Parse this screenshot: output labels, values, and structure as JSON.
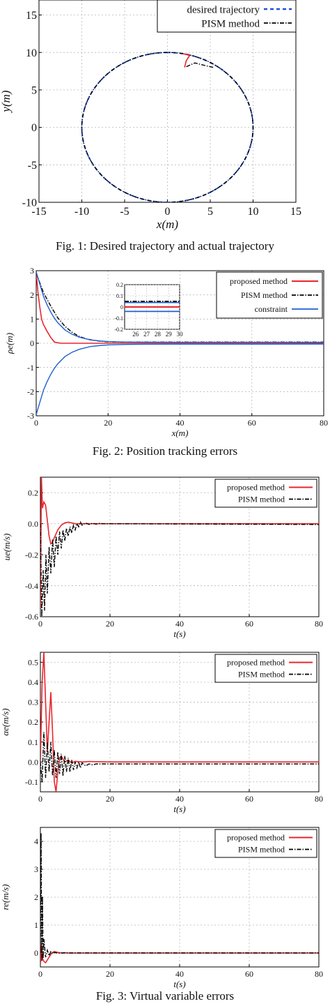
{
  "captions": {
    "fig1": "Fig. 1: Desired trajectory and actual trajectory",
    "fig2": "Fig. 2: Position tracking errors",
    "fig3": "Fig. 3: Virtual variable errors"
  },
  "colors": {
    "proposed": "#e8262c",
    "pism": "#000000",
    "desired": "#1f4fe0",
    "constraint": "#1f5fd0",
    "grid": "#b8b8b8"
  },
  "chart_data": [
    {
      "id": "fig1",
      "type": "line",
      "xlabel": "x(m)",
      "ylabel": "y(m)",
      "xlim": [
        -15,
        15
      ],
      "ylim": [
        -10,
        17
      ],
      "xticks": [
        -15,
        -10,
        -5,
        0,
        5,
        10,
        15
      ],
      "yticks": [
        -10,
        -5,
        0,
        5,
        10,
        15
      ],
      "grid": true,
      "legend_position": "top-right",
      "series": [
        {
          "name": "desired trajectory",
          "style": "dashed-blue",
          "kind": "circle",
          "radius": 10
        },
        {
          "name": "PISM method",
          "style": "dashdot-black",
          "kind": "circle-with-start",
          "radius": 10,
          "start_points": [
            [
              2.2,
              8.1
            ],
            [
              3.2,
              8.6
            ],
            [
              4.6,
              8.2
            ],
            [
              5.4,
              8.0
            ]
          ]
        },
        {
          "name": "",
          "style": "solid-red",
          "kind": "start-segment",
          "points": [
            [
              2.0,
              8.0
            ],
            [
              2.2,
              8.9
            ],
            [
              2.6,
              9.6
            ],
            [
              1.8,
              9.85
            ]
          ]
        }
      ]
    },
    {
      "id": "fig2",
      "type": "line",
      "xlabel": "x(m)",
      "ylabel": "ρe(m)",
      "xlim": [
        0,
        80
      ],
      "ylim": [
        -3,
        3
      ],
      "xticks": [
        0,
        20,
        40,
        60,
        80
      ],
      "yticks": [
        -3,
        -2,
        -1,
        0,
        1,
        2,
        3
      ],
      "grid": true,
      "legend_position": "top-right",
      "series": [
        {
          "name": "proposed method",
          "style": "solid-red",
          "x": [
            0,
            0.5,
            1,
            1.5,
            2,
            3,
            4,
            5,
            5.5,
            6,
            7,
            8,
            80
          ],
          "y": [
            2.9,
            2.1,
            1.5,
            1.0,
            0.78,
            0.5,
            0.25,
            0.06,
            0.03,
            0.02,
            0.0,
            0.0,
            0.0
          ]
        },
        {
          "name": "PISM method",
          "style": "dashdot-black",
          "x": [
            0,
            2,
            4,
            6,
            8,
            10,
            12,
            14,
            16,
            18,
            20,
            25,
            30,
            80
          ],
          "y": [
            2.9,
            2.1,
            1.55,
            1.05,
            0.7,
            0.45,
            0.28,
            0.18,
            0.12,
            0.08,
            0.06,
            0.05,
            0.05,
            0.05
          ]
        },
        {
          "name": "constraint",
          "style": "solid-blue",
          "x": [
            0,
            1,
            2,
            3,
            4,
            5,
            6,
            8,
            10,
            12,
            15,
            18,
            20,
            25,
            30,
            80
          ],
          "y": [
            2.95,
            2.45,
            1.95,
            1.6,
            1.3,
            1.05,
            0.85,
            0.55,
            0.37,
            0.25,
            0.14,
            0.09,
            0.07,
            0.05,
            0.04,
            0.035
          ]
        },
        {
          "name": "",
          "style": "solid-blue",
          "x": [
            0,
            1,
            2,
            3,
            4,
            5,
            6,
            8,
            10,
            12,
            15,
            18,
            20,
            25,
            30,
            80
          ],
          "y": [
            -2.95,
            -2.45,
            -1.95,
            -1.6,
            -1.3,
            -1.05,
            -0.85,
            -0.55,
            -0.37,
            -0.25,
            -0.14,
            -0.09,
            -0.07,
            -0.05,
            -0.04,
            -0.035
          ]
        }
      ],
      "inset": {
        "xlim": [
          25,
          30
        ],
        "ylim": [
          -0.2,
          0.2
        ],
        "xticks": [
          26,
          27,
          28,
          29,
          30
        ],
        "yticks": [
          -0.2,
          -0.1,
          0,
          0.1,
          0.2
        ],
        "lines": [
          {
            "style": "solid-blue",
            "y": 0.04
          },
          {
            "style": "dashdot-black",
            "y": 0.05
          },
          {
            "style": "solid-red",
            "y": 0.0
          },
          {
            "style": "solid-blue",
            "y": -0.04
          }
        ]
      }
    },
    {
      "id": "fig3a",
      "type": "line",
      "xlabel": "t(s)",
      "ylabel": "ue(m/s)",
      "xlim": [
        0,
        80
      ],
      "ylim": [
        -0.6,
        0.3
      ],
      "xticks": [
        0,
        20,
        40,
        60,
        80
      ],
      "yticks": [
        -0.6,
        -0.4,
        -0.2,
        0.0,
        0.2
      ],
      "ytick_labels": [
        "-0.6",
        "-0.4",
        "-0.2",
        "0.0",
        "0.2"
      ],
      "grid": true,
      "legend_position": "top-right",
      "series": [
        {
          "name": "proposed method",
          "style": "solid-red",
          "x": [
            0,
            0.3,
            0.6,
            1,
            1.5,
            2,
            2.5,
            3,
            3.5,
            4,
            5,
            6,
            7,
            8,
            9,
            10,
            12,
            80
          ],
          "y": [
            -0.55,
            0.3,
            0.1,
            0.14,
            0.12,
            0.02,
            -0.08,
            -0.13,
            -0.12,
            -0.09,
            -0.04,
            -0.01,
            0.005,
            0.01,
            0.005,
            0.0,
            0.0,
            0.0
          ]
        },
        {
          "name": "PISM method",
          "style": "dashdot-black",
          "x": [
            0,
            0.4,
            0.8,
            1.2,
            1.6,
            2,
            2.5,
            3,
            3.5,
            4,
            4.5,
            5,
            5.5,
            6,
            6.5,
            7,
            7.5,
            8,
            8.5,
            9,
            9.5,
            10,
            10.5,
            11,
            11.5,
            12,
            13,
            14,
            15,
            16,
            17,
            18,
            20,
            80
          ],
          "y": [
            0.0,
            -0.6,
            -0.3,
            -0.56,
            -0.2,
            -0.45,
            -0.15,
            -0.32,
            -0.1,
            -0.28,
            -0.08,
            -0.2,
            -0.05,
            -0.16,
            -0.04,
            -0.11,
            -0.03,
            -0.08,
            -0.02,
            -0.06,
            -0.01,
            -0.04,
            0.0,
            -0.02,
            0.01,
            -0.01,
            0.005,
            -0.005,
            0.003,
            -0.003,
            0.002,
            0.0,
            0.0,
            -0.005
          ]
        }
      ]
    },
    {
      "id": "fig3b",
      "type": "line",
      "xlabel": "t(s)",
      "ylabel": "αe(m/s)",
      "xlim": [
        0,
        80
      ],
      "ylim": [
        -0.15,
        0.55
      ],
      "xticks": [
        0,
        20,
        40,
        60,
        80
      ],
      "yticks": [
        -0.1,
        0.0,
        0.1,
        0.2,
        0.3,
        0.4,
        0.5
      ],
      "ytick_labels": [
        "-0.1",
        "0.0",
        "0.1",
        "0.2",
        "0.3",
        "0.4",
        "0.5"
      ],
      "grid": true,
      "legend_position": "top-right",
      "series": [
        {
          "name": "proposed method",
          "style": "solid-red",
          "x": [
            0,
            0.5,
            1,
            1.5,
            2,
            2.5,
            3,
            3.5,
            4,
            4.5,
            5,
            5.5,
            6,
            7,
            8,
            9,
            10,
            12,
            14,
            20,
            30,
            40,
            50,
            60,
            70,
            80
          ],
          "y": [
            0.0,
            0.4,
            0.55,
            0.3,
            0.05,
            0.2,
            0.35,
            0.15,
            -0.1,
            -0.15,
            -0.05,
            0.02,
            0.03,
            0.0,
            0.01,
            -0.005,
            0.003,
            0.0,
            0.002,
            0.0,
            0.0,
            0.0,
            0.0,
            0.0,
            0.0,
            0.0
          ]
        },
        {
          "name": "PISM method",
          "style": "dashdot-black",
          "x": [
            0,
            0.5,
            1,
            1.5,
            2,
            2.5,
            3,
            3.5,
            4,
            4.5,
            5,
            5.5,
            6,
            6.5,
            7,
            7.5,
            8,
            8.5,
            9,
            9.5,
            10,
            10.5,
            11,
            11.5,
            12,
            13,
            14,
            15,
            16,
            18,
            20,
            30,
            40,
            50,
            60,
            70,
            80
          ],
          "y": [
            0.0,
            -0.1,
            0.15,
            -0.08,
            0.1,
            -0.05,
            0.1,
            -0.07,
            0.06,
            -0.08,
            0.05,
            -0.06,
            0.04,
            -0.07,
            0.03,
            -0.05,
            0.02,
            -0.05,
            0.01,
            -0.04,
            0.0,
            -0.03,
            0.0,
            -0.03,
            -0.005,
            -0.02,
            -0.01,
            -0.015,
            -0.01,
            -0.01,
            -0.01,
            -0.01,
            -0.01,
            -0.01,
            -0.01,
            -0.01,
            -0.01
          ]
        }
      ]
    },
    {
      "id": "fig3c",
      "type": "line",
      "xlabel": "t(s)",
      "ylabel": "re(m/s)",
      "xlim": [
        0,
        80
      ],
      "ylim": [
        -0.5,
        4.5
      ],
      "xticks": [
        0,
        20,
        40,
        60,
        80
      ],
      "yticks": [
        0,
        1,
        2,
        3,
        4
      ],
      "grid": true,
      "legend_position": "top-right",
      "series": [
        {
          "name": "proposed method",
          "style": "solid-red",
          "x": [
            0,
            0.3,
            0.6,
            1,
            1.5,
            2,
            2.5,
            3,
            3.5,
            4,
            4.5,
            5,
            6,
            7,
            8,
            10,
            80
          ],
          "y": [
            -0.4,
            0.3,
            -0.2,
            -0.3,
            -0.35,
            -0.25,
            -0.15,
            -0.05,
            0.02,
            0.05,
            0.04,
            0.02,
            0.0,
            0.01,
            0.0,
            0.0,
            0.0
          ]
        },
        {
          "name": "PISM method",
          "style": "dashdot-black",
          "x": [
            0,
            0.2,
            0.4,
            0.6,
            0.8,
            1,
            1.5,
            2,
            2.5,
            3,
            3.5,
            4,
            5,
            6,
            8,
            10,
            80
          ],
          "y": [
            0.0,
            4.3,
            -0.3,
            2.0,
            -0.2,
            0.5,
            -0.15,
            0.1,
            -0.1,
            0.05,
            -0.03,
            0.02,
            -0.01,
            0.0,
            0.0,
            0.0,
            0.0
          ]
        }
      ]
    }
  ]
}
